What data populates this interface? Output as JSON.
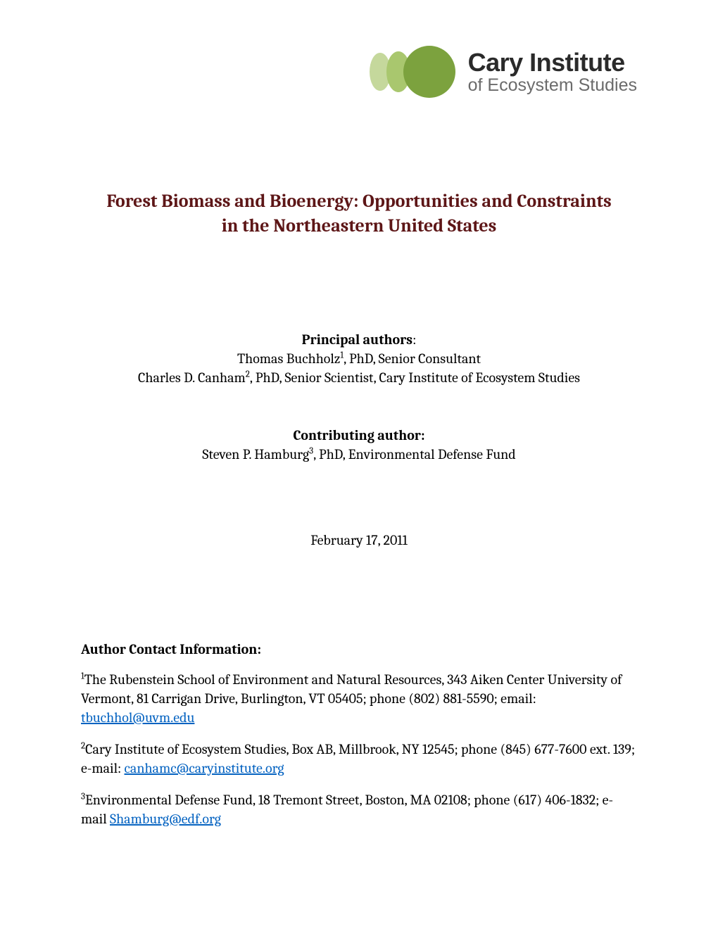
{
  "logo": {
    "main": "Cary Institute",
    "sub": "of Ecosystem Studies",
    "circle_colors": [
      "#c5d89c",
      "#a9c76e",
      "#7ca23e"
    ]
  },
  "title_line1": "Forest Biomass and Bioenergy:  Opportunities and Constraints",
  "title_line2": "in the Northeastern United States",
  "principal": {
    "heading": "Principal authors",
    "author1_pre": "Thomas Buchholz",
    "author1_sup": "1",
    "author1_post": ", PhD, Senior Consultant",
    "author2_pre": "Charles D. Canham",
    "author2_sup": "2",
    "author2_post": ", PhD, Senior Scientist, Cary Institute of Ecosystem Studies"
  },
  "contributing": {
    "heading": "Contributing author:",
    "author_pre": "Steven P. Hamburg",
    "author_sup": "3",
    "author_post": ", PhD, Environmental Defense Fund"
  },
  "date": "February 17, 2011",
  "contact": {
    "heading": "Author Contact Information:",
    "entries": [
      {
        "sup": "1",
        "text_before": "The Rubenstein School of Environment and Natural Resources, 343 Aiken Center University of Vermont, 81 Carrigan Drive, Burlington, VT 05405; phone (802) 881-5590; email:  ",
        "link": "tbuchhol@uvm.edu",
        "text_after": ""
      },
      {
        "sup": "2",
        "text_before": "Cary Institute of Ecosystem Studies, Box AB, Millbrook, NY 12545; phone (845) 677-7600 ext. 139; e-mail:  ",
        "link": "canhamc@caryinstitute.org",
        "text_after": ""
      },
      {
        "sup": "3",
        "text_before": "Environmental Defense Fund, 18 Tremont Street, Boston, MA 02108; phone (617) 406-1832; e-mail ",
        "link": "Shamburg@edf.org",
        "text_after": ""
      }
    ]
  },
  "colors": {
    "title_color": "#5d1617",
    "link_color": "#0563c1",
    "text_color": "#000000",
    "background": "#ffffff"
  },
  "typography": {
    "title_fontsize": 26,
    "body_fontsize": 20,
    "sup_fontsize": 13,
    "logo_main_fontsize": 36,
    "logo_sub_fontsize": 25
  }
}
